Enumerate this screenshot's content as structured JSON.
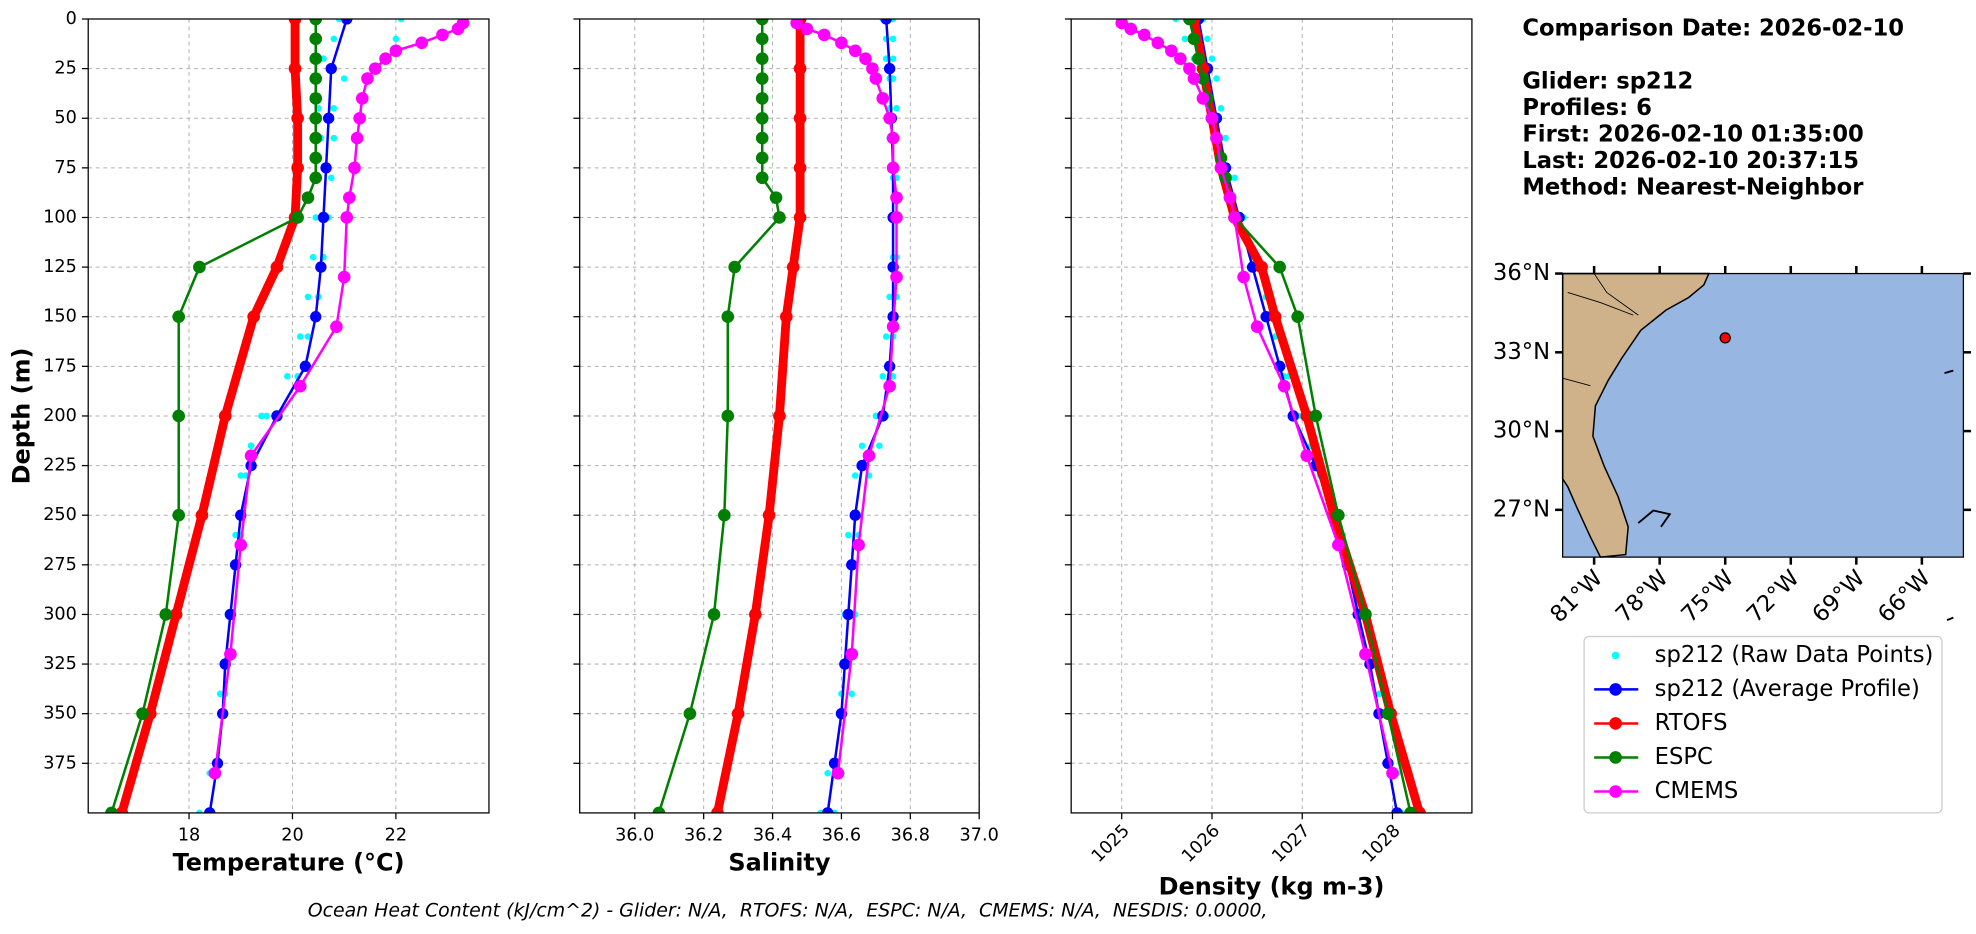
{
  "chart_data": {
    "type": "profile",
    "ylabel": "Depth (m)",
    "ylim": [
      400,
      0
    ],
    "yticks": [
      0,
      25,
      50,
      75,
      100,
      125,
      150,
      175,
      200,
      225,
      250,
      275,
      300,
      325,
      350,
      375
    ],
    "grid": true,
    "legend": [
      {
        "name": "sp212 (Raw Data Points)",
        "color": "#00ffff",
        "style": "points"
      },
      {
        "name": "sp212 (Average Profile)",
        "color": "#0000ff",
        "style": "line"
      },
      {
        "name": "RTOFS",
        "color": "#ff0000",
        "style": "line"
      },
      {
        "name": "ESPC",
        "color": "#008000",
        "style": "line"
      },
      {
        "name": "CMEMS",
        "color": "#ff00ff",
        "style": "line"
      }
    ],
    "panels": [
      {
        "xlabel": "Temperature (°C)",
        "xlim": [
          16.05,
          23.8
        ],
        "xticks": [
          18,
          20,
          22
        ],
        "series": [
          {
            "depth": [
              0,
              10,
              20,
              30,
              45,
              60,
              80,
              100,
              120,
              140,
              160,
              180,
              200,
              215,
              230,
              260,
              300,
              340,
              380,
              400,
              0,
              10,
              20,
              30,
              45,
              60,
              80,
              100,
              120,
              140,
              160,
              180,
              200,
              215,
              230,
              260,
              300,
              340,
              380,
              400
            ],
            "values": [
              22.1,
              22.0,
              21.8,
              21.0,
              20.8,
              20.8,
              20.75,
              20.7,
              20.6,
              20.5,
              20.3,
              20.1,
              19.4,
              19.2,
              19.1,
              19.0,
              18.85,
              18.7,
              18.55,
              18.4,
              20.9,
              20.8,
              20.6,
              20.5,
              20.5,
              20.55,
              20.5,
              20.45,
              20.4,
              20.3,
              20.15,
              19.9,
              19.5,
              19.2,
              19.0,
              18.9,
              18.75,
              18.6,
              18.4,
              18.2
            ]
          },
          {
            "depth": [
              0,
              25,
              50,
              75,
              100,
              125,
              150,
              175,
              200,
              225,
              250,
              275,
              300,
              325,
              350,
              375,
              400
            ],
            "values": [
              21.05,
              20.75,
              20.7,
              20.65,
              20.6,
              20.55,
              20.45,
              20.25,
              19.7,
              19.2,
              19.0,
              18.9,
              18.8,
              18.7,
              18.65,
              18.55,
              18.4
            ]
          },
          {
            "depth": [
              0,
              25,
              50,
              75,
              100,
              125,
              150,
              200,
              250,
              300,
              350,
              400
            ],
            "values": [
              20.05,
              20.05,
              20.1,
              20.1,
              20.05,
              19.7,
              19.25,
              18.7,
              18.25,
              17.75,
              17.25,
              16.7
            ]
          },
          {
            "depth": [
              0,
              10,
              20,
              30,
              40,
              50,
              60,
              70,
              80,
              90,
              100,
              125,
              150,
              200,
              250,
              300,
              350,
              400
            ],
            "values": [
              20.45,
              20.45,
              20.45,
              20.45,
              20.45,
              20.45,
              20.45,
              20.45,
              20.45,
              20.3,
              20.1,
              18.2,
              17.8,
              17.8,
              17.8,
              17.55,
              17.1,
              16.5
            ]
          },
          {
            "depth": [
              2,
              5,
              8,
              12,
              16,
              20,
              25,
              30,
              40,
              50,
              60,
              75,
              90,
              100,
              130,
              155,
              185,
              220,
              265,
              320,
              380
            ],
            "values": [
              23.3,
              23.2,
              22.9,
              22.5,
              22.0,
              21.8,
              21.6,
              21.45,
              21.35,
              21.3,
              21.25,
              21.2,
              21.1,
              21.05,
              21.0,
              20.85,
              20.15,
              19.2,
              19.0,
              18.8,
              18.5
            ]
          }
        ]
      },
      {
        "xlabel": "Salinity",
        "xlim": [
          35.84,
          37.0
        ],
        "xticks": [
          {
            "value": 36.0,
            "label": "36.0"
          },
          36.2,
          36.4,
          36.6,
          36.8,
          {
            "value": 37.0,
            "label": "37.0"
          }
        ],
        "series": [
          {
            "depth": [
              0,
              10,
              20,
              30,
              45,
              60,
              80,
              100,
              120,
              140,
              160,
              180,
              200,
              215,
              230,
              260,
              300,
              340,
              380,
              400,
              0,
              10,
              20,
              30,
              45,
              60,
              80,
              100,
              120,
              140,
              160,
              180,
              200,
              215,
              230,
              260,
              300,
              340,
              380,
              400
            ],
            "values": [
              36.75,
              36.75,
              36.75,
              36.75,
              36.76,
              36.76,
              36.76,
              36.76,
              36.76,
              36.76,
              36.75,
              36.75,
              36.73,
              36.71,
              36.68,
              36.65,
              36.64,
              36.63,
              36.6,
              36.58,
              36.72,
              36.73,
              36.73,
              36.74,
              36.74,
              36.74,
              36.75,
              36.75,
              36.75,
              36.74,
              36.73,
              36.72,
              36.7,
              36.66,
              36.64,
              36.62,
              36.61,
              36.6,
              36.56,
              36.54
            ]
          },
          {
            "depth": [
              0,
              25,
              50,
              75,
              100,
              125,
              150,
              175,
              200,
              225,
              250,
              275,
              300,
              325,
              350,
              375,
              400
            ],
            "values": [
              36.73,
              36.74,
              36.745,
              36.75,
              36.75,
              36.75,
              36.75,
              36.74,
              36.72,
              36.66,
              36.64,
              36.63,
              36.62,
              36.61,
              36.6,
              36.58,
              36.56
            ]
          },
          {
            "depth": [
              0,
              25,
              50,
              75,
              100,
              125,
              150,
              200,
              250,
              300,
              350,
              400
            ],
            "values": [
              36.48,
              36.48,
              36.48,
              36.48,
              36.48,
              36.46,
              36.44,
              36.42,
              36.39,
              36.35,
              36.3,
              36.24
            ]
          },
          {
            "depth": [
              0,
              10,
              20,
              30,
              40,
              50,
              60,
              70,
              80,
              90,
              100,
              125,
              150,
              200,
              250,
              300,
              350,
              400
            ],
            "values": [
              36.37,
              36.37,
              36.37,
              36.37,
              36.37,
              36.37,
              36.37,
              36.37,
              36.37,
              36.41,
              36.42,
              36.29,
              36.27,
              36.27,
              36.26,
              36.23,
              36.16,
              36.07
            ]
          },
          {
            "depth": [
              2,
              5,
              8,
              12,
              16,
              20,
              25,
              30,
              40,
              50,
              60,
              75,
              90,
              100,
              130,
              155,
              185,
              220,
              265,
              320,
              380
            ],
            "values": [
              36.47,
              36.5,
              36.55,
              36.6,
              36.64,
              36.67,
              36.69,
              36.7,
              36.72,
              36.74,
              36.75,
              36.75,
              36.76,
              36.76,
              36.76,
              36.75,
              36.74,
              36.68,
              36.65,
              36.63,
              36.59
            ]
          }
        ]
      },
      {
        "xlabel": "Density (kg m-3)",
        "xlim": [
          1024.44,
          1028.88
        ],
        "xticks": [
          1025,
          1026,
          1027,
          1028
        ],
        "rotate_xticks": true,
        "series": [
          {
            "depth": [
              0,
              10,
              20,
              30,
              45,
              60,
              80,
              100,
              120,
              140,
              160,
              180,
              200,
              215,
              230,
              260,
              300,
              340,
              380,
              400,
              0,
              10,
              20,
              30,
              45,
              60,
              80,
              100,
              120,
              140,
              160,
              180,
              200,
              215,
              230,
              260,
              300,
              340,
              380,
              400
            ],
            "values": [
              1025.6,
              1025.7,
              1025.8,
              1025.9,
              1026.0,
              1026.1,
              1026.2,
              1026.3,
              1026.45,
              1026.6,
              1026.7,
              1026.8,
              1026.95,
              1027.1,
              1027.2,
              1027.4,
              1027.65,
              1027.85,
              1028.0,
              1028.05,
              1025.9,
              1025.95,
              1026.0,
              1026.05,
              1026.1,
              1026.15,
              1026.25,
              1026.35,
              1026.5,
              1026.6,
              1026.75,
              1026.85,
              1027.0,
              1027.1,
              1027.25,
              1027.45,
              1027.7,
              1027.9,
              1028.05,
              1028.1
            ]
          },
          {
            "depth": [
              0,
              25,
              50,
              75,
              100,
              125,
              150,
              175,
              200,
              225,
              250,
              275,
              300,
              325,
              350,
              375,
              400
            ],
            "values": [
              1025.85,
              1025.95,
              1026.05,
              1026.15,
              1026.3,
              1026.45,
              1026.6,
              1026.75,
              1026.9,
              1027.15,
              1027.35,
              1027.5,
              1027.62,
              1027.75,
              1027.85,
              1027.95,
              1028.05
            ]
          },
          {
            "depth": [
              0,
              25,
              50,
              75,
              100,
              125,
              150,
              200,
              250,
              300,
              350,
              400
            ],
            "values": [
              1025.8,
              1025.9,
              1026.0,
              1026.1,
              1026.25,
              1026.55,
              1026.7,
              1027.05,
              1027.35,
              1027.7,
              1027.98,
              1028.3
            ]
          },
          {
            "depth": [
              0,
              10,
              20,
              30,
              40,
              50,
              60,
              70,
              80,
              90,
              100,
              125,
              150,
              200,
              250,
              300,
              350,
              400
            ],
            "values": [
              1025.75,
              1025.8,
              1025.85,
              1025.9,
              1025.95,
              1026.0,
              1026.05,
              1026.1,
              1026.15,
              1026.2,
              1026.25,
              1026.75,
              1026.95,
              1027.15,
              1027.4,
              1027.7,
              1027.95,
              1028.2
            ]
          },
          {
            "depth": [
              2,
              5,
              8,
              12,
              16,
              20,
              25,
              30,
              40,
              50,
              60,
              75,
              90,
              100,
              130,
              155,
              185,
              220,
              265,
              320,
              380
            ],
            "values": [
              1025.0,
              1025.1,
              1025.25,
              1025.4,
              1025.55,
              1025.65,
              1025.75,
              1025.8,
              1025.9,
              1026.0,
              1026.05,
              1026.1,
              1026.2,
              1026.25,
              1026.35,
              1026.5,
              1026.8,
              1027.05,
              1027.4,
              1027.7,
              1028.0
            ]
          }
        ]
      }
    ],
    "map": {
      "xlim": [
        -82.44,
        -64.1
      ],
      "ylim": [
        25.2,
        36
      ],
      "xticks": [
        {
          "value": -81,
          "label": "81°W"
        },
        {
          "value": -78,
          "label": "78°W"
        },
        {
          "value": -75,
          "label": "75°W"
        },
        {
          "value": -72,
          "label": "72°W"
        },
        {
          "value": -69,
          "label": "69°W"
        },
        {
          "value": -66,
          "label": "66°W"
        }
      ],
      "yticks": [
        {
          "value": 27,
          "label": "27°N"
        },
        {
          "value": 30,
          "label": "30°N"
        },
        {
          "value": 33,
          "label": "33°N"
        },
        {
          "value": 36,
          "label": "36°N"
        }
      ],
      "glider": {
        "lon": -75.0,
        "lat": 33.55,
        "color": "#ff0000"
      }
    },
    "header": "Comparison Date: 2026-02-10",
    "info": [
      "Glider: sp212",
      "Profiles: 6",
      "First: 2026-02-10 01:35:00",
      "Last: 2026-02-10 20:37:15",
      "Method: Nearest-Neighbor"
    ],
    "footer": "Ocean Heat Content (kJ/cm^2) - Glider: N/A,  RTOFS: N/A,  ESPC: N/A,  CMEMS: N/A,  NESDIS: 0.0000,"
  }
}
